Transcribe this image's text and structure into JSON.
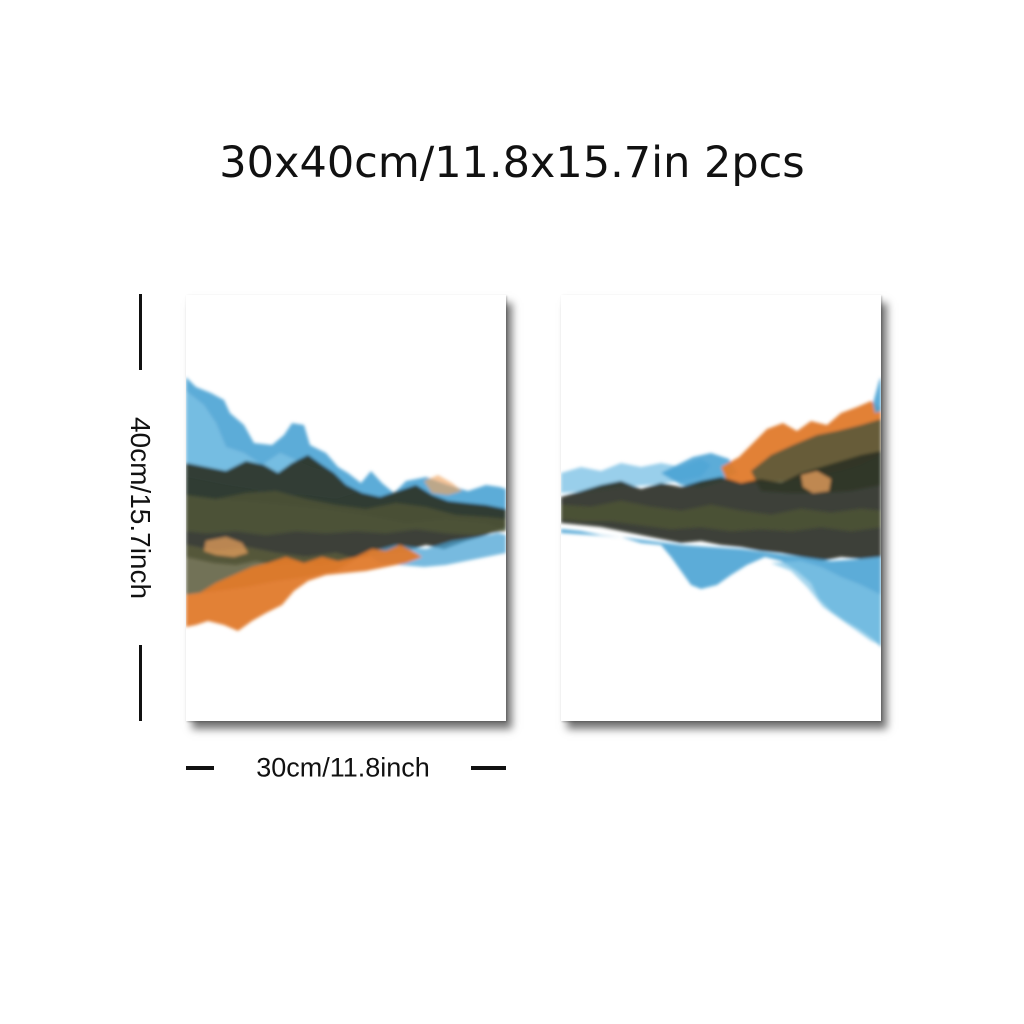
{
  "title": "30x40cm/11.8x15.7in 2pcs",
  "dimensions": {
    "height_label": "40cm/15.7inch",
    "width_label": "30cm/11.8inch"
  },
  "colors": {
    "blue": "#4aa3d4",
    "dark": "#2b3226",
    "olive": "#4e5536",
    "orange": "#e07a2a"
  },
  "panels": [
    "left-canvas",
    "right-canvas"
  ]
}
